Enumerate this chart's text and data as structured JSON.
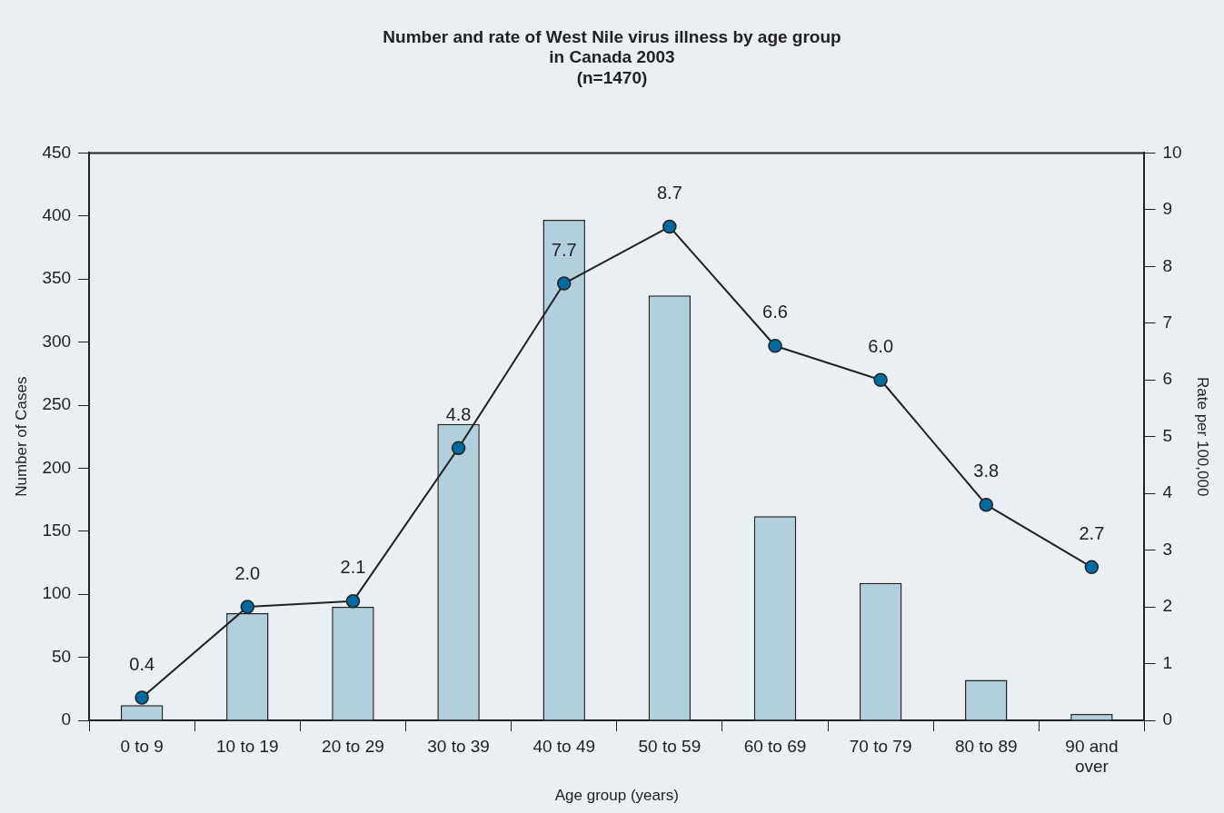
{
  "chart_data": {
    "type": "bar",
    "title": "Number and rate of West Nile virus illness by age group\nin Canada 2003\n(n=1470)",
    "xlabel": "Age group (years)",
    "ylabel": "Number of Cases",
    "y2label": "Rate per 100,000",
    "categories": [
      "0 to 9",
      "10 to 19",
      "20 to 29",
      "30 to 39",
      "40 to 49",
      "50 to 59",
      "60 to 69",
      "70 to 79",
      "80 to 89",
      "90 and over"
    ],
    "series": [
      {
        "color": "#b2d0dc",
        "values": [
          12,
          85,
          90,
          235,
          397,
          337,
          162,
          109,
          32,
          5
        ]
      },
      {
        "type": "line",
        "axis": "y2",
        "color": "#0069a0",
        "marker": "circle",
        "line_style": "solid",
        "values": [
          0.4,
          2.0,
          2.1,
          4.8,
          7.7,
          8.7,
          6.6,
          6.0,
          3.8,
          2.7
        ],
        "value_labels": [
          "0.4",
          "2.0",
          "2.1",
          "4.8",
          "7.7",
          "8.7",
          "6.6",
          "6.0",
          "3.8",
          "2.7"
        ]
      }
    ],
    "ylim": [
      0,
      450
    ],
    "yticks": [
      0,
      50,
      100,
      150,
      200,
      250,
      300,
      350,
      400,
      450
    ],
    "y2lim": [
      0,
      10
    ],
    "y2ticks": [
      0,
      1,
      2,
      3,
      4,
      5,
      6,
      7,
      8,
      9,
      10
    ],
    "grid": false,
    "legend": false
  }
}
